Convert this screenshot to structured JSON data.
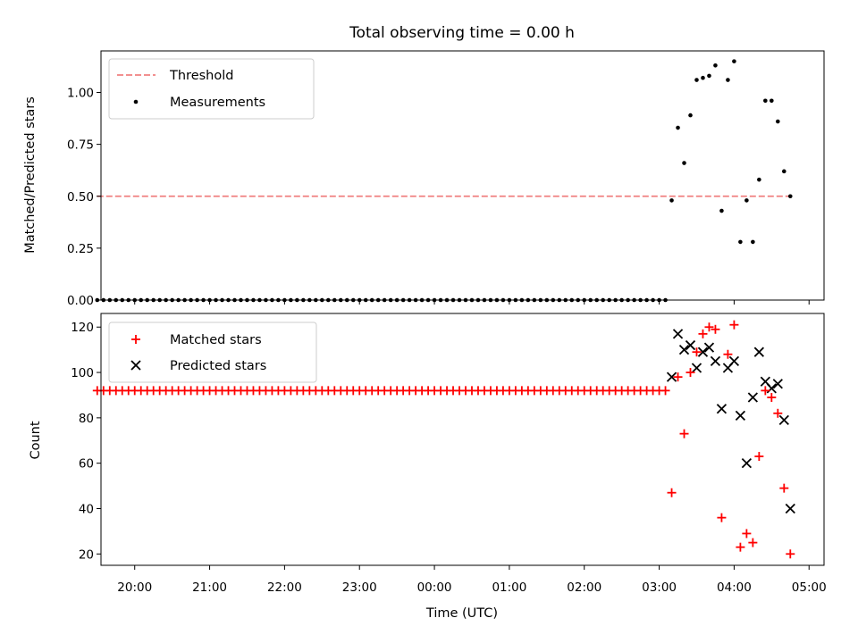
{
  "figure": {
    "title": "Total observing time = 0.00 h"
  },
  "chart_data": [
    {
      "type": "scatter",
      "ylabel": "Matched/Predicted stars",
      "xlabel": "",
      "xlim": [
        "19:33",
        "05:12"
      ],
      "ylim": [
        0,
        1.2
      ],
      "yticks": [
        0.0,
        0.25,
        0.5,
        0.75,
        1.0
      ],
      "ytick_labels": [
        "0.00",
        "0.25",
        "0.50",
        "0.75",
        "1.00"
      ],
      "grid": false,
      "legend": "top-left",
      "threshold": {
        "name": "Threshold",
        "value": 0.5,
        "x_start": "19:30",
        "x_end": "04:45",
        "color": "#f08080",
        "style": "dashed"
      },
      "series": [
        {
          "name": "Measurements",
          "color": "#000000",
          "marker": "dot",
          "flat": {
            "x_start": "19:30",
            "x_end": "03:05",
            "step_min": 5,
            "y": 0.0
          },
          "x": [
            "03:10",
            "03:15",
            "03:20",
            "03:25",
            "03:30",
            "03:35",
            "03:40",
            "03:45",
            "03:50",
            "03:55",
            "04:00",
            "04:05",
            "04:10",
            "04:15",
            "04:20",
            "04:25",
            "04:30",
            "04:35",
            "04:40",
            "04:45"
          ],
          "y": [
            0.48,
            0.83,
            0.66,
            0.89,
            1.06,
            1.07,
            1.08,
            1.13,
            0.43,
            1.06,
            1.15,
            0.28,
            0.48,
            0.28,
            0.58,
            0.96,
            0.96,
            0.86,
            0.62,
            0.5
          ]
        }
      ]
    },
    {
      "type": "scatter",
      "ylabel": "Count",
      "xlabel": "Time (UTC)",
      "xlim": [
        "19:33",
        "05:12"
      ],
      "ylim": [
        15,
        126
      ],
      "yticks": [
        20,
        40,
        60,
        80,
        100,
        120
      ],
      "xticks": [
        "20:00",
        "21:00",
        "22:00",
        "23:00",
        "00:00",
        "01:00",
        "02:00",
        "03:00",
        "04:00",
        "05:00"
      ],
      "grid": false,
      "legend": "top-left",
      "series": [
        {
          "name": "Matched stars",
          "color": "#ff0000",
          "marker": "plus",
          "flat": {
            "x_start": "19:30",
            "x_end": "03:05",
            "step_min": 5,
            "y": 92
          },
          "x": [
            "03:10",
            "03:15",
            "03:20",
            "03:25",
            "03:30",
            "03:35",
            "03:40",
            "03:45",
            "03:50",
            "03:55",
            "04:00",
            "04:05",
            "04:10",
            "04:15",
            "04:20",
            "04:25",
            "04:30",
            "04:35",
            "04:40",
            "04:45"
          ],
          "y": [
            47,
            98,
            73,
            100,
            109,
            117,
            120,
            119,
            36,
            108,
            121,
            23,
            29,
            25,
            63,
            92,
            89,
            82,
            49,
            20
          ]
        },
        {
          "name": "Predicted stars",
          "color": "#000000",
          "marker": "x",
          "x": [
            "03:10",
            "03:15",
            "03:20",
            "03:25",
            "03:30",
            "03:35",
            "03:40",
            "03:45",
            "03:50",
            "03:55",
            "04:00",
            "04:05",
            "04:10",
            "04:15",
            "04:20",
            "04:25",
            "04:30",
            "04:35",
            "04:40",
            "04:45"
          ],
          "y": [
            98,
            117,
            110,
            112,
            102,
            109,
            111,
            105,
            84,
            102,
            105,
            81,
            60,
            89,
            109,
            96,
            93,
            95,
            79,
            40
          ]
        }
      ]
    }
  ]
}
